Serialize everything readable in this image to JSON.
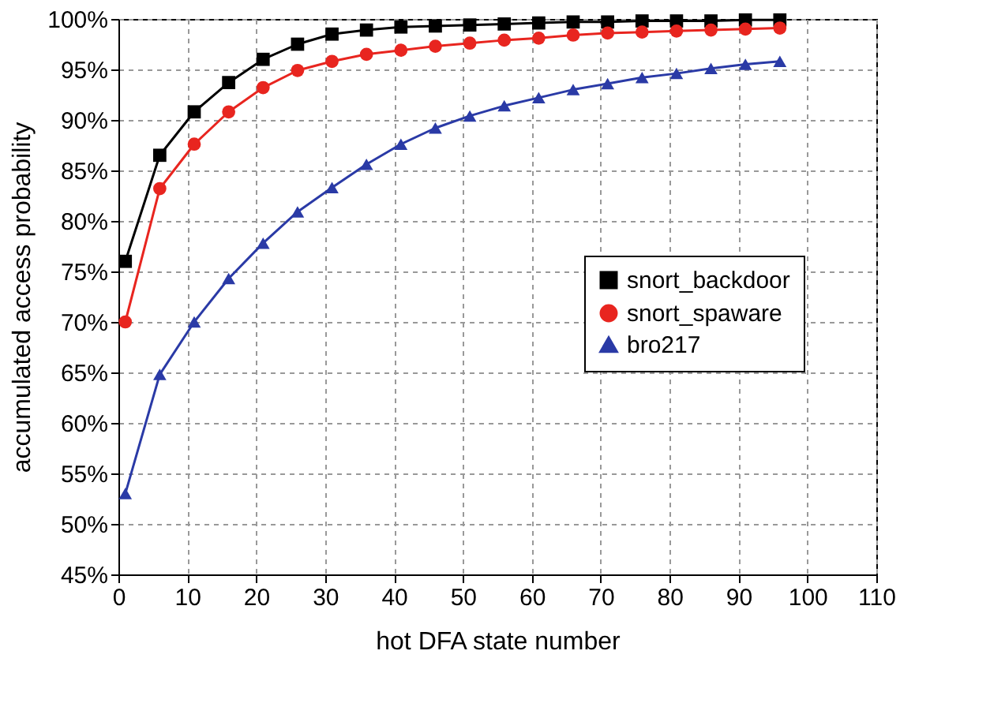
{
  "chart_data": {
    "type": "line",
    "xlabel": "hot DFA state number",
    "ylabel": "accumulated access probability",
    "x": [
      1,
      6,
      11,
      16,
      21,
      26,
      31,
      36,
      41,
      46,
      51,
      56,
      61,
      66,
      71,
      76,
      81,
      86,
      91,
      96
    ],
    "series": [
      {
        "name": "snort_backdoor",
        "color": "#000000",
        "marker": "square",
        "values": [
          76,
          86.5,
          90.8,
          93.7,
          96,
          97.5,
          98.5,
          98.9,
          99.2,
          99.3,
          99.4,
          99.5,
          99.6,
          99.7,
          99.7,
          99.8,
          99.8,
          99.8,
          99.9,
          99.9
        ]
      },
      {
        "name": "snort_spaware",
        "color": "#e8251f",
        "marker": "circle",
        "values": [
          70,
          83.2,
          87.6,
          90.8,
          93.2,
          94.9,
          95.8,
          96.5,
          96.9,
          97.3,
          97.6,
          97.9,
          98.1,
          98.4,
          98.6,
          98.7,
          98.8,
          98.9,
          99.0,
          99.1
        ]
      },
      {
        "name": "bro217",
        "color": "#2a3aa6",
        "marker": "triangle",
        "values": [
          53,
          64.8,
          70,
          74.3,
          77.8,
          80.9,
          83.3,
          85.6,
          87.6,
          89.2,
          90.4,
          91.4,
          92.2,
          93,
          93.6,
          94.2,
          94.6,
          95.1,
          95.5,
          95.8
        ]
      }
    ],
    "xlim": [
      0,
      110
    ],
    "xticks": [
      0,
      10,
      20,
      30,
      40,
      50,
      60,
      70,
      80,
      90,
      100,
      110
    ],
    "ylim": [
      45,
      100
    ],
    "yticks": [
      {
        "value": 45,
        "label": "45%"
      },
      {
        "value": 50,
        "label": "50%"
      },
      {
        "value": 55,
        "label": "55%"
      },
      {
        "value": 60,
        "label": "60%"
      },
      {
        "value": 65,
        "label": "65%"
      },
      {
        "value": 70,
        "label": "70%"
      },
      {
        "value": 75,
        "label": "75%"
      },
      {
        "value": 80,
        "label": "80%"
      },
      {
        "value": 85,
        "label": "85%"
      },
      {
        "value": 90,
        "label": "90%"
      },
      {
        "value": 95,
        "label": "95%"
      },
      {
        "value": 100,
        "label": "100%"
      }
    ],
    "grid": true,
    "legend": "right",
    "line_style": "solid"
  }
}
